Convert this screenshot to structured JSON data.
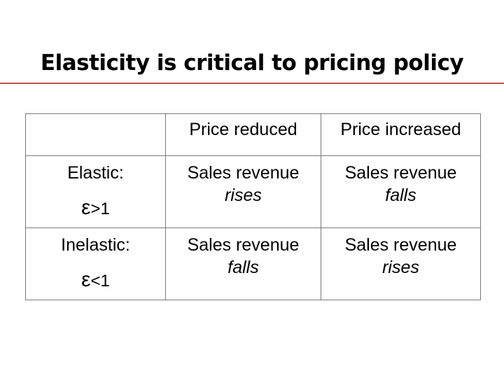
{
  "slide": {
    "title": "Elasticity is critical to pricing policy",
    "accent_color": "#c0504d"
  },
  "table": {
    "corner_label": "",
    "column_headers": [
      "Price reduced",
      "Price increased"
    ],
    "rows": [
      {
        "label": "Elastic:",
        "symbol": "ε",
        "condition": ">1",
        "cells": [
          {
            "line1": "Sales revenue",
            "line2": "rises"
          },
          {
            "line1": "Sales revenue",
            "line2": "falls"
          }
        ]
      },
      {
        "label": "Inelastic:",
        "symbol": "ε",
        "condition": "<1",
        "cells": [
          {
            "line1": "Sales revenue",
            "line2": "falls"
          },
          {
            "line1": "Sales revenue",
            "line2": "rises"
          }
        ]
      }
    ]
  }
}
